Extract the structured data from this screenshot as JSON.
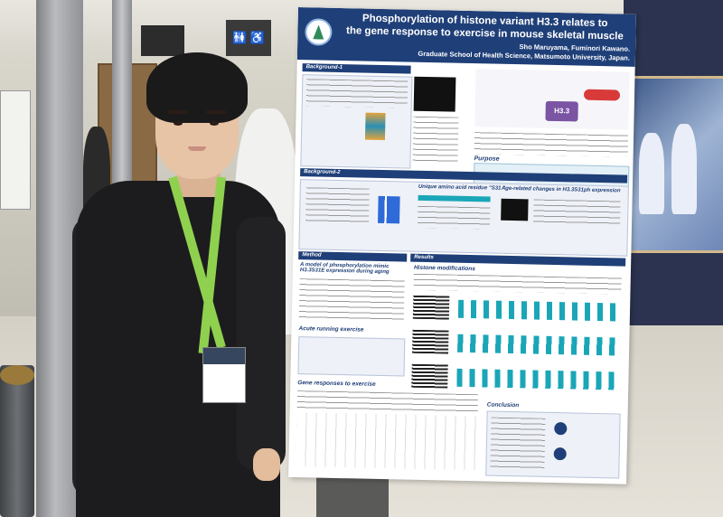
{
  "scene": {
    "description_visible": true
  },
  "signage": {
    "room_sign": "",
    "restroom_sign": "🚻 ♿"
  },
  "poster": {
    "title_line1": "Phosphorylation of histone variant H3.3 relates to",
    "title_line2": "the gene response to exercise in mouse skeletal muscle",
    "authors": "Sho Maruyama, Fuminori Kawano.",
    "affiliation": "Graduate School of Health Science, Matsumoto University, Japan.",
    "sections": {
      "background1": "Background-1",
      "background2": "Background-2",
      "method": "Method",
      "results": "Results",
      "model_heading": "A model of phosphorylation mimic H3.3S31E expression during aging",
      "acute_heading": "Acute running exercise",
      "gene_heading": "Gene responses to exercise",
      "histone_heading": "Histone modifications",
      "conclusion": "Conclusion",
      "purpose": "Purpose",
      "h33_label": "H3.3",
      "unique_amino": "Unique amino acid residue \"S31 \"",
      "age_related": "Age-related changes in H3.3S31ph expression"
    }
  },
  "colors": {
    "poster_blue": "#1f3f78",
    "lanyard_green": "#8fd14f",
    "accent_teal": "#1aa6b7"
  }
}
